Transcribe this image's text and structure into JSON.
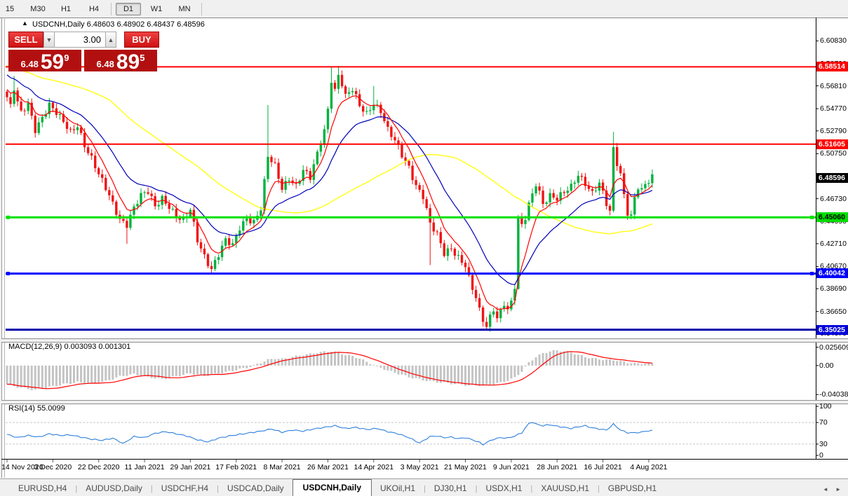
{
  "toolbar": {
    "timeframes": [
      {
        "label": "15",
        "active": false
      },
      {
        "label": "M30",
        "active": false
      },
      {
        "label": "H1",
        "active": false
      },
      {
        "label": "H4",
        "active": false
      },
      {
        "label": "D1",
        "active": true
      },
      {
        "label": "W1",
        "active": false
      },
      {
        "label": "MN",
        "active": false
      }
    ],
    "separators_after": [
      3,
      6
    ]
  },
  "chart": {
    "title_symbol": "USDCNH,Daily",
    "title_ohlc": "6.48603 6.48902 6.48437 6.48596",
    "arrow_icon": "▲"
  },
  "trade_panel": {
    "sell_label": "SELL",
    "buy_label": "BUY",
    "volume": "3.00",
    "spin_down_icon": "▼",
    "spin_up_icon": "▲",
    "sell_price": {
      "prefix": "6.48",
      "main": "59",
      "sup": "9"
    },
    "buy_price": {
      "prefix": "6.48",
      "main": "89",
      "sup": "5"
    }
  },
  "indicators": {
    "macd_label": "MACD(12,26,9) 0.003093 0.001301",
    "rsi_label": "RSI(14) 55.0099"
  },
  "tab_bar": {
    "tabs": [
      {
        "label": "EURUSD,H4",
        "active": false
      },
      {
        "label": "AUDUSD,Daily",
        "active": false
      },
      {
        "label": "USDCHF,H4",
        "active": false
      },
      {
        "label": "USDCAD,Daily",
        "active": false
      },
      {
        "label": "USDCNH,Daily",
        "active": true
      },
      {
        "label": "UKOil,H1",
        "active": false
      },
      {
        "label": "DJ30,H1",
        "active": false
      },
      {
        "label": "USDX,H1",
        "active": false
      },
      {
        "label": "XAUUSD,H1",
        "active": false
      },
      {
        "label": "GBPUSD,H1",
        "active": false
      }
    ],
    "scroll_left_icon": "◄",
    "scroll_right_icon": "►"
  },
  "chart_data": {
    "type": "candlestick",
    "symbol": "USDCNH",
    "timeframe": "Daily",
    "ohlc": {
      "open": 6.48603,
      "high": 6.48902,
      "low": 6.48437,
      "close": 6.48596
    },
    "current_price": {
      "value": "6.48596",
      "price": 6.48596,
      "badge_bg": "#000000",
      "badge_fg": "#ffffff"
    },
    "y_axis": {
      "max": 6.6273,
      "min": 6.3425,
      "ticks": [
        "6.60830",
        "6.58790",
        "6.56810",
        "6.54770",
        "6.52790",
        "6.50750",
        "6.48710",
        "6.46730",
        "6.44690",
        "6.42710",
        "6.40670",
        "6.38690",
        "6.36650",
        "6.34670"
      ]
    },
    "x_labels": [
      "14 Nov 2020",
      "3 Dec 2020",
      "22 Dec 2020",
      "11 Jan 2021",
      "29 Jan 2021",
      "17 Feb 2021",
      "8 Mar 2021",
      "26 Mar 2021",
      "14 Apr 2021",
      "3 May 2021",
      "21 May 2021",
      "9 Jun 2021",
      "28 Jun 2021",
      "16 Jul 2021",
      "4 Aug 2021"
    ],
    "candles_per_label": 13,
    "num_candles": 184,
    "up_color": "#00b23c",
    "down_color": "#f01414",
    "h_lines": [
      {
        "price": 6.58514,
        "label": "6.58514",
        "color": "#ff0000",
        "width": 2,
        "badge_bg": "#ff0000",
        "badge_fg": "#ffffff",
        "handles": false
      },
      {
        "price": 6.51605,
        "label": "6.51605",
        "color": "#ff0000",
        "width": 2,
        "badge_bg": "#ff0000",
        "badge_fg": "#ffffff",
        "handles": false
      },
      {
        "price": 6.4506,
        "label": "6.45060",
        "color": "#00e000",
        "width": 3,
        "badge_bg": "#00dc00",
        "badge_fg": "#000000",
        "handles": true
      },
      {
        "price": 6.40042,
        "label": "6.40042",
        "color": "#0000ff",
        "width": 3,
        "badge_bg": "#0000ff",
        "badge_fg": "#ffffff",
        "handles": true
      },
      {
        "price": 6.35025,
        "label": "6.35025",
        "color": "#0000aa",
        "width": 3,
        "badge_bg": "#0000dc",
        "badge_fg": "#ffffff",
        "handles": false
      }
    ],
    "history_seed": {
      "bars": 25,
      "from": 6.615
    },
    "moving_averages": [
      {
        "name": "slow",
        "type": "sma",
        "period": 55,
        "color": "#ffff00",
        "width": 1.3
      },
      {
        "name": "mid",
        "type": "ema",
        "period": 20,
        "color": "#0000bb",
        "width": 1.2
      },
      {
        "name": "fast",
        "type": "ema",
        "period": 7,
        "color": "#ff0000",
        "width": 1.2
      }
    ],
    "price_anchors": [
      [
        0,
        6.558
      ],
      [
        1,
        6.549
      ],
      [
        2,
        6.565
      ],
      [
        3,
        6.552
      ],
      [
        4,
        6.543
      ],
      [
        6,
        6.552
      ],
      [
        8,
        6.53
      ],
      [
        10,
        6.541
      ],
      [
        12,
        6.551
      ],
      [
        14,
        6.543
      ],
      [
        16,
        6.535
      ],
      [
        18,
        6.527
      ],
      [
        20,
        6.534
      ],
      [
        22,
        6.516
      ],
      [
        24,
        6.503
      ],
      [
        26,
        6.488
      ],
      [
        28,
        6.476
      ],
      [
        30,
        6.463
      ],
      [
        32,
        6.45
      ],
      [
        34,
        6.445
      ],
      [
        36,
        6.459
      ],
      [
        38,
        6.469
      ],
      [
        40,
        6.473
      ],
      [
        42,
        6.461
      ],
      [
        44,
        6.469
      ],
      [
        46,
        6.461
      ],
      [
        48,
        6.451
      ],
      [
        50,
        6.446
      ],
      [
        52,
        6.457
      ],
      [
        54,
        6.431
      ],
      [
        56,
        6.417
      ],
      [
        58,
        6.405
      ],
      [
        60,
        6.417
      ],
      [
        62,
        6.429
      ],
      [
        64,
        6.425
      ],
      [
        66,
        6.442
      ],
      [
        68,
        6.451
      ],
      [
        70,
        6.447
      ],
      [
        72,
        6.458
      ],
      [
        74,
        6.504
      ],
      [
        76,
        6.496
      ],
      [
        78,
        6.477
      ],
      [
        80,
        6.487
      ],
      [
        82,
        6.479
      ],
      [
        84,
        6.492
      ],
      [
        86,
        6.485
      ],
      [
        88,
        6.507
      ],
      [
        90,
        6.529
      ],
      [
        91,
        6.548
      ],
      [
        92,
        6.575
      ],
      [
        93,
        6.565
      ],
      [
        94,
        6.578
      ],
      [
        95,
        6.57
      ],
      [
        96,
        6.558
      ],
      [
        98,
        6.564
      ],
      [
        100,
        6.55
      ],
      [
        102,
        6.544
      ],
      [
        104,
        6.554
      ],
      [
        106,
        6.546
      ],
      [
        108,
        6.528
      ],
      [
        110,
        6.518
      ],
      [
        112,
        6.506
      ],
      [
        114,
        6.496
      ],
      [
        116,
        6.48
      ],
      [
        118,
        6.47
      ],
      [
        120,
        6.444
      ],
      [
        122,
        6.434
      ],
      [
        124,
        6.418
      ],
      [
        126,
        6.424
      ],
      [
        128,
        6.416
      ],
      [
        130,
        6.408
      ],
      [
        131,
        6.396
      ],
      [
        132,
        6.386
      ],
      [
        133,
        6.378
      ],
      [
        134,
        6.366
      ],
      [
        135,
        6.358
      ],
      [
        136,
        6.353
      ],
      [
        137,
        6.362
      ],
      [
        138,
        6.37
      ],
      [
        139,
        6.362
      ],
      [
        140,
        6.368
      ],
      [
        141,
        6.375
      ],
      [
        142,
        6.368
      ],
      [
        143,
        6.374
      ],
      [
        144,
        6.388
      ],
      [
        145,
        6.448
      ],
      [
        146,
        6.442
      ],
      [
        147,
        6.45
      ],
      [
        148,
        6.462
      ],
      [
        149,
        6.472
      ],
      [
        150,
        6.482
      ],
      [
        151,
        6.474
      ],
      [
        152,
        6.464
      ],
      [
        154,
        6.47
      ],
      [
        156,
        6.466
      ],
      [
        158,
        6.472
      ],
      [
        160,
        6.478
      ],
      [
        162,
        6.49
      ],
      [
        164,
        6.482
      ],
      [
        166,
        6.472
      ],
      [
        168,
        6.48
      ],
      [
        170,
        6.462
      ],
      [
        171,
        6.455
      ],
      [
        172,
        6.512
      ],
      [
        173,
        6.5
      ],
      [
        174,
        6.49
      ],
      [
        175,
        6.472
      ],
      [
        176,
        6.456
      ],
      [
        177,
        6.452
      ],
      [
        178,
        6.468
      ],
      [
        179,
        6.477
      ],
      [
        180,
        6.473
      ],
      [
        181,
        6.479
      ],
      [
        182,
        6.482
      ],
      [
        183,
        6.486
      ]
    ],
    "wick_overrides": [
      {
        "i": 2,
        "h": 6.577
      },
      {
        "i": 34,
        "l": 6.427
      },
      {
        "i": 58,
        "l": 6.401
      },
      {
        "i": 74,
        "h": 6.551
      },
      {
        "i": 92,
        "h": 6.5855
      },
      {
        "i": 94,
        "h": 6.586
      },
      {
        "i": 104,
        "h": 6.568
      },
      {
        "i": 120,
        "l": 6.408
      },
      {
        "i": 136,
        "l": 6.3505
      },
      {
        "i": 145,
        "l": 6.386
      },
      {
        "i": 172,
        "h": 6.527
      },
      {
        "i": 177,
        "l": 6.449
      }
    ],
    "macd": {
      "params": "12,26,9",
      "value": 0.003093,
      "signal": 0.001301,
      "axis": {
        "max": 0.034,
        "min": -0.048
      },
      "ticks": [
        {
          "label": "0.025609",
          "v": 0.025609
        },
        {
          "label": "0.00",
          "v": 0
        },
        {
          "label": "-0.040385",
          "v": -0.040385
        }
      ],
      "hist_color": "#c4c4c4",
      "signal_color": "#ff0000",
      "anchors": [
        [
          0,
          -0.026
        ],
        [
          4,
          -0.031
        ],
        [
          8,
          -0.034
        ],
        [
          12,
          -0.03
        ],
        [
          16,
          -0.026
        ],
        [
          20,
          -0.023
        ],
        [
          24,
          -0.026
        ],
        [
          28,
          -0.022
        ],
        [
          32,
          -0.015
        ],
        [
          36,
          -0.012
        ],
        [
          40,
          -0.016
        ],
        [
          44,
          -0.019
        ],
        [
          48,
          -0.015
        ],
        [
          52,
          -0.011
        ],
        [
          56,
          -0.014
        ],
        [
          60,
          -0.011
        ],
        [
          64,
          -0.007
        ],
        [
          68,
          -0.003
        ],
        [
          70,
          0.0
        ],
        [
          72,
          0.004
        ],
        [
          74,
          0.008
        ],
        [
          76,
          0.01
        ],
        [
          78,
          0.009
        ],
        [
          80,
          0.011
        ],
        [
          82,
          0.013
        ],
        [
          84,
          0.015
        ],
        [
          86,
          0.016
        ],
        [
          88,
          0.018
        ],
        [
          90,
          0.019
        ],
        [
          92,
          0.02
        ],
        [
          94,
          0.018
        ],
        [
          96,
          0.015
        ],
        [
          98,
          0.013
        ],
        [
          100,
          0.01
        ],
        [
          102,
          0.005
        ],
        [
          104,
          0.001
        ],
        [
          106,
          -0.003
        ],
        [
          108,
          -0.007
        ],
        [
          110,
          -0.01
        ],
        [
          112,
          -0.013
        ],
        [
          114,
          -0.016
        ],
        [
          116,
          -0.018
        ],
        [
          118,
          -0.02
        ],
        [
          120,
          -0.022
        ],
        [
          124,
          -0.024
        ],
        [
          128,
          -0.026
        ],
        [
          132,
          -0.028
        ],
        [
          136,
          -0.027
        ],
        [
          140,
          -0.024
        ],
        [
          144,
          -0.017
        ],
        [
          146,
          -0.008
        ],
        [
          148,
          0.004
        ],
        [
          150,
          0.012
        ],
        [
          152,
          0.017
        ],
        [
          154,
          0.02
        ],
        [
          156,
          0.021
        ],
        [
          158,
          0.02
        ],
        [
          160,
          0.018
        ],
        [
          162,
          0.015
        ],
        [
          164,
          0.012
        ],
        [
          166,
          0.01
        ],
        [
          168,
          0.009
        ],
        [
          170,
          0.008
        ],
        [
          172,
          0.008
        ],
        [
          174,
          0.006
        ],
        [
          176,
          0.004
        ],
        [
          178,
          0.003
        ],
        [
          180,
          0.003
        ],
        [
          183,
          0.0031
        ]
      ]
    },
    "rsi": {
      "period": 14,
      "value": 55.0099,
      "color": "#2e7fdc",
      "levels": [
        70,
        30
      ],
      "axis": {
        "max": 100,
        "min": 0
      },
      "ticks": [
        {
          "label": "100",
          "v": 100
        },
        {
          "label": "70",
          "v": 70
        },
        {
          "label": "30",
          "v": 30
        },
        {
          "label": "0",
          "v": 0
        }
      ],
      "anchors": [
        [
          0,
          48
        ],
        [
          3,
          42
        ],
        [
          6,
          46
        ],
        [
          9,
          43
        ],
        [
          12,
          49
        ],
        [
          15,
          46
        ],
        [
          18,
          47
        ],
        [
          21,
          43
        ],
        [
          24,
          39
        ],
        [
          27,
          37
        ],
        [
          30,
          41
        ],
        [
          33,
          31
        ],
        [
          36,
          44
        ],
        [
          39,
          42
        ],
        [
          42,
          50
        ],
        [
          45,
          53
        ],
        [
          48,
          49
        ],
        [
          51,
          45
        ],
        [
          54,
          38
        ],
        [
          57,
          34
        ],
        [
          60,
          41
        ],
        [
          63,
          45
        ],
        [
          66,
          48
        ],
        [
          69,
          51
        ],
        [
          72,
          54
        ],
        [
          75,
          58
        ],
        [
          78,
          52
        ],
        [
          81,
          56
        ],
        [
          84,
          54
        ],
        [
          87,
          58
        ],
        [
          90,
          61
        ],
        [
          93,
          64
        ],
        [
          96,
          59
        ],
        [
          99,
          61
        ],
        [
          102,
          57
        ],
        [
          105,
          59
        ],
        [
          108,
          53
        ],
        [
          111,
          49
        ],
        [
          114,
          42
        ],
        [
          117,
          32
        ],
        [
          120,
          44
        ],
        [
          122,
          45
        ],
        [
          124,
          42
        ],
        [
          126,
          43
        ],
        [
          128,
          40
        ],
        [
          130,
          42
        ],
        [
          132,
          38
        ],
        [
          134,
          33
        ],
        [
          135,
          29
        ],
        [
          136,
          33
        ],
        [
          138,
          39
        ],
        [
          140,
          42
        ],
        [
          142,
          41
        ],
        [
          144,
          45
        ],
        [
          146,
          51
        ],
        [
          147,
          60
        ],
        [
          148,
          68
        ],
        [
          149,
          71
        ],
        [
          150,
          67
        ],
        [
          152,
          64
        ],
        [
          154,
          66
        ],
        [
          156,
          63
        ],
        [
          158,
          61
        ],
        [
          160,
          59
        ],
        [
          162,
          62
        ],
        [
          164,
          64
        ],
        [
          166,
          60
        ],
        [
          168,
          58
        ],
        [
          170,
          56
        ],
        [
          172,
          67
        ],
        [
          174,
          56
        ],
        [
          176,
          51
        ],
        [
          178,
          51
        ],
        [
          180,
          52
        ],
        [
          181,
          54
        ],
        [
          183,
          55
        ]
      ]
    }
  }
}
